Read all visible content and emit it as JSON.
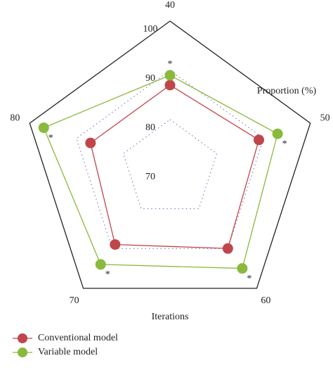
{
  "chart_data": {
    "type": "radar",
    "categories": [
      "40",
      "50",
      "60",
      "70",
      "80"
    ],
    "category_axis_label": "Iterations",
    "value_axis_label": "Proportion (%)",
    "rlim": [
      70,
      100
    ],
    "rticks": [
      70,
      80,
      90,
      100
    ],
    "grid": true,
    "series": [
      {
        "name": "Conventional model",
        "color": "#c0464a",
        "values": [
          87,
          89,
          90,
          89,
          87
        ]
      },
      {
        "name": "Variable model",
        "color": "#8ab93c",
        "values": [
          89,
          93,
          95,
          94,
          97
        ]
      }
    ],
    "annotations": [
      "*",
      "*",
      "*",
      "*",
      "*"
    ],
    "legend": "bottom-left"
  }
}
